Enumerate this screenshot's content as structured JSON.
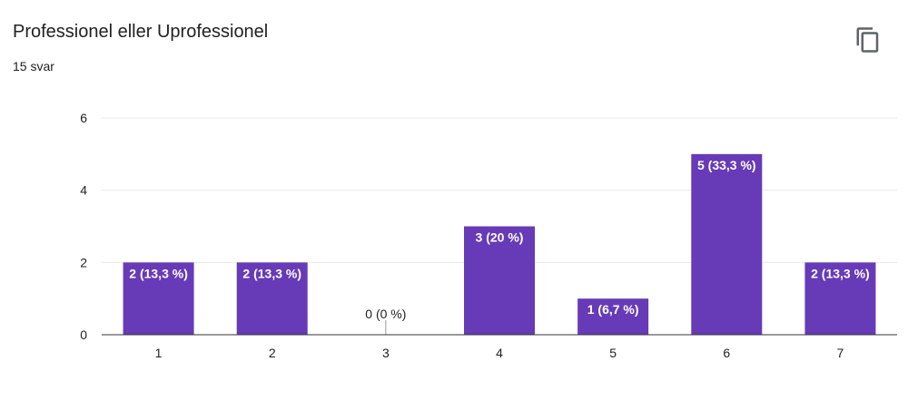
{
  "header": {
    "title": "Professionel eller Uprofessionel",
    "response_count": "15 svar",
    "copy_icon": "copy-icon"
  },
  "colors": {
    "bar": "#673ab7",
    "grid": "#e8e8e8",
    "axis": "#333333",
    "label_inside": "#ffffff",
    "label_outside": "#202124"
  },
  "chart_data": {
    "type": "bar",
    "categories": [
      "1",
      "2",
      "3",
      "4",
      "5",
      "6",
      "7"
    ],
    "values": [
      2,
      2,
      0,
      3,
      1,
      5,
      2
    ],
    "data_labels": [
      "2 (13,3 %)",
      "2 (13,3 %)",
      "0 (0 %)",
      "3 (20 %)",
      "1 (6,7 %)",
      "5 (33,3 %)",
      "2 (13,3 %)"
    ],
    "ylim": [
      0,
      6
    ],
    "yticks": [
      0,
      2,
      4,
      6
    ],
    "grid": true,
    "legend": "none"
  }
}
